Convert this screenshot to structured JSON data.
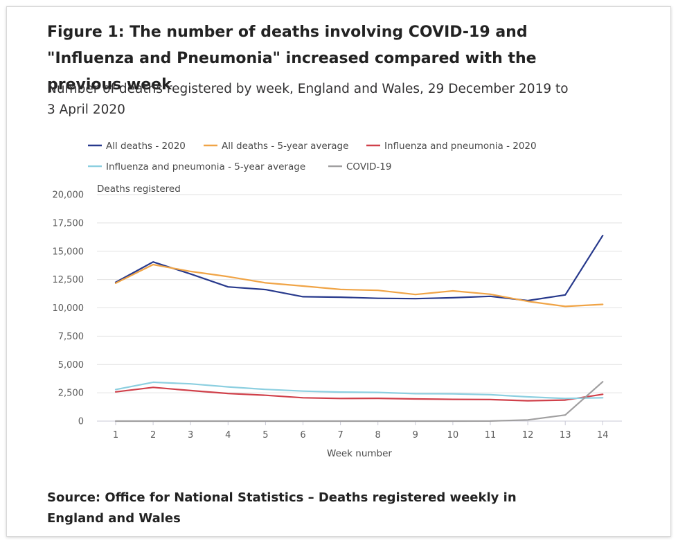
{
  "title": "Figure 1: The number of deaths involving COVID-19 and \"Influenza and Pneumonia\" increased compared with the previous week",
  "subtitle": "Number of deaths registered by week, England and Wales, 29 December 2019 to 3 April 2020",
  "source": "Source: Office for National Statistics – Deaths registered weekly in England and Wales",
  "chart_data": {
    "type": "line",
    "title": "Figure 1: The number of deaths involving COVID-19 and \"Influenza and Pneumonia\" increased compared with the previous week",
    "ylabel": "Deaths registered",
    "xlabel": "Week number",
    "x": [
      1,
      2,
      3,
      4,
      5,
      6,
      7,
      8,
      9,
      10,
      11,
      12,
      13,
      14
    ],
    "ylim": [
      0,
      20000
    ],
    "yticks": [
      0,
      2500,
      5000,
      7500,
      10000,
      12500,
      15000,
      17500,
      20000
    ],
    "ytick_labels": [
      "0",
      "2,500",
      "5,000",
      "7,500",
      "10,000",
      "12,500",
      "15,000",
      "17,500",
      "20,000"
    ],
    "grid": true,
    "legend_position": "top",
    "series": [
      {
        "name": "All deaths - 2020",
        "color": "#27398c",
        "values": [
          12254,
          14058,
          12990,
          11856,
          11612,
          10986,
          10944,
          10841,
          10816,
          10895,
          11019,
          10645,
          11141,
          16387
        ]
      },
      {
        "name": "All deaths - 5-year average",
        "color": "#f0a446",
        "values": [
          12175,
          13822,
          13216,
          12760,
          12206,
          11925,
          11627,
          11548,
          11183,
          11498,
          11205,
          10573,
          10130,
          10305
        ]
      },
      {
        "name": "Influenza and pneumonia - 2020",
        "color": "#d0404a",
        "values": [
          2580,
          2980,
          2700,
          2440,
          2280,
          2060,
          2000,
          2010,
          1960,
          1920,
          1900,
          1800,
          1860,
          2370
        ]
      },
      {
        "name": "Influenza and pneumonia - 5-year average",
        "color": "#8ccfe0",
        "values": [
          2790,
          3430,
          3290,
          3020,
          2800,
          2650,
          2560,
          2530,
          2420,
          2410,
          2330,
          2140,
          2000,
          2060
        ]
      },
      {
        "name": "COVID-19",
        "color": "#a09fa0",
        "values": [
          0,
          0,
          0,
          0,
          0,
          0,
          0,
          0,
          0,
          0,
          5,
          103,
          539,
          3475
        ]
      }
    ]
  }
}
